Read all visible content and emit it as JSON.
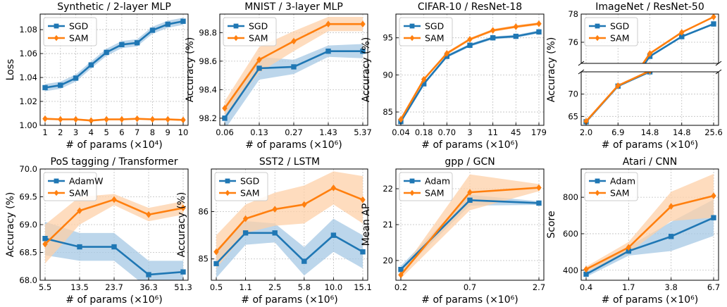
{
  "colors": {
    "sgd": "#1f77b4",
    "sam": "#ff7f0e",
    "sgd_band": "#a6c8e4",
    "sam_band": "#fdd0a8",
    "grid": "#bfbfbf"
  },
  "chart_data": [
    {
      "type": "line",
      "title": "Synthetic / 2-layer MLP",
      "xlabel": "# of params (×10⁴)",
      "ylabel": "Loss",
      "categories": [
        "1",
        "2",
        "3",
        "4",
        "5",
        "6",
        "7",
        "8",
        "9",
        "10"
      ],
      "ylim": [
        1.0,
        1.093
      ],
      "yticks": [
        1.0,
        1.02,
        1.04,
        1.06,
        1.08
      ],
      "ytick_labels": [
        "1.00",
        "1.02",
        "1.04",
        "1.06",
        "1.08"
      ],
      "legend": "upper-left",
      "grid": true,
      "series": [
        {
          "name": "SGD",
          "color": "sgd",
          "marker": "square",
          "values": [
            1.0315,
            1.0335,
            1.0395,
            1.0505,
            1.061,
            1.0675,
            1.069,
            1.0795,
            1.0845,
            1.087
          ],
          "band": [
            0.003,
            0.003,
            0.003,
            0.003,
            0.003,
            0.003,
            0.003,
            0.003,
            0.003,
            0.003
          ]
        },
        {
          "name": "SAM",
          "color": "sam",
          "marker": "diamond",
          "values": [
            1.0055,
            1.005,
            1.005,
            1.004,
            1.005,
            1.005,
            1.0055,
            1.005,
            1.005,
            1.0045
          ],
          "band": [
            0.0008,
            0.0008,
            0.0008,
            0.0008,
            0.0008,
            0.0008,
            0.0008,
            0.0008,
            0.0008,
            0.0008
          ]
        }
      ]
    },
    {
      "type": "line",
      "title": "MNIST / 3-layer MLP",
      "xlabel": "# of params (×10⁶)",
      "ylabel": "Accuracy (%)",
      "categories": [
        "0.06",
        "0.13",
        "0.27",
        "1.43",
        "5.37"
      ],
      "ylim": [
        98.15,
        98.93
      ],
      "yticks": [
        98.2,
        98.4,
        98.6,
        98.8
      ],
      "ytick_labels": [
        "98.2",
        "98.4",
        "98.6",
        "98.8"
      ],
      "legend": "upper-left",
      "grid": true,
      "series": [
        {
          "name": "SGD",
          "color": "sgd",
          "marker": "square",
          "values": [
            98.2,
            98.55,
            98.56,
            98.67,
            98.67
          ],
          "band": [
            0.08,
            0.08,
            0.05,
            0.04,
            0.05
          ]
        },
        {
          "name": "SAM",
          "color": "sam",
          "marker": "diamond",
          "values": [
            98.27,
            98.61,
            98.74,
            98.86,
            98.86
          ],
          "band": [
            0.05,
            0.09,
            0.07,
            0.05,
            0.05
          ]
        }
      ]
    },
    {
      "type": "line",
      "title": "CIFAR-10 / ResNet-18",
      "xlabel": "# of params (×10⁶)",
      "ylabel": "Accuracy (%)",
      "categories": [
        "0.04",
        "0.18",
        "0.70",
        "3",
        "11",
        "45",
        "179"
      ],
      "ylim": [
        83.2,
        98.2
      ],
      "yticks": [
        85,
        90,
        95
      ],
      "ytick_labels": [
        "85",
        "90",
        "95"
      ],
      "legend": "upper-left",
      "grid": true,
      "series": [
        {
          "name": "SGD",
          "color": "sgd",
          "marker": "square",
          "values": [
            83.7,
            88.8,
            92.5,
            94.0,
            95.0,
            95.2,
            95.8
          ],
          "band": [
            0.2,
            0.2,
            0.2,
            0.2,
            0.2,
            0.2,
            0.2
          ]
        },
        {
          "name": "SAM",
          "color": "sam",
          "marker": "diamond",
          "values": [
            84.0,
            89.4,
            92.9,
            94.8,
            96.0,
            96.5,
            96.9
          ],
          "band": [
            0.2,
            0.2,
            0.2,
            0.2,
            0.2,
            0.2,
            0.2
          ]
        }
      ]
    },
    {
      "type": "line",
      "title": "ImageNet / ResNet-50",
      "xlabel": "# of params (×10⁶)",
      "ylabel": "Accuracy (%)",
      "categories": [
        "2.0",
        "6.9",
        "14.8",
        "14.8",
        "25.6"
      ],
      "broken_axis": true,
      "upper_ylim": [
        74.5,
        78.0
      ],
      "upper_yticks": [
        76,
        78
      ],
      "upper_ytick_labels": [
        "76",
        "78"
      ],
      "lower_ylim": [
        63.0,
        75.0
      ],
      "lower_yticks": [
        65,
        70
      ],
      "lower_ytick_labels": [
        "65",
        "70"
      ],
      "legend": "upper-left",
      "grid": true,
      "series": [
        {
          "name": "SGD",
          "color": "sgd",
          "marker": "square",
          "values": [
            63.8,
            71.8,
            75.0,
            76.4,
            77.3
          ]
        },
        {
          "name": "SAM",
          "color": "sam",
          "marker": "diamond",
          "values": [
            63.9,
            71.9,
            75.2,
            76.7,
            77.8
          ]
        }
      ]
    },
    {
      "type": "line",
      "title": "PoS tagging / Transformer",
      "xlabel": "# of params (×10⁶)",
      "ylabel": "Accuracy (%)",
      "categories": [
        "5.5",
        "13.5",
        "23.7",
        "36.3",
        "51.3"
      ],
      "ylim": [
        68.0,
        70.0
      ],
      "yticks": [
        68.0,
        68.5,
        69.0,
        69.5,
        70.0
      ],
      "ytick_labels": [
        "68.0",
        "68.5",
        "69.0",
        "69.5",
        "70.0"
      ],
      "legend": "upper-left",
      "grid": true,
      "series": [
        {
          "name": "AdamW",
          "color": "sgd",
          "marker": "square",
          "values": [
            68.75,
            68.6,
            68.6,
            68.1,
            68.15
          ],
          "band": [
            0.3,
            0.25,
            0.25,
            0.25,
            0.2
          ]
        },
        {
          "name": "SAM",
          "color": "sam",
          "marker": "diamond",
          "values": [
            68.65,
            69.25,
            69.45,
            69.18,
            69.3
          ],
          "band": [
            0.35,
            0.25,
            0.1,
            0.12,
            0.12
          ]
        }
      ]
    },
    {
      "type": "line",
      "title": "SST2 / LSTM",
      "xlabel": "# of params (×10⁶)",
      "ylabel": "Accuracy (%)",
      "categories": [
        "0.5",
        "1.1",
        "2.5",
        "5.8",
        "10.0",
        "15.1"
      ],
      "ylim": [
        84.55,
        86.9
      ],
      "yticks": [
        85,
        86
      ],
      "ytick_labels": [
        "85",
        "86"
      ],
      "legend": "upper-left",
      "grid": true,
      "series": [
        {
          "name": "SGD",
          "color": "sgd",
          "marker": "square",
          "values": [
            84.9,
            85.55,
            85.55,
            84.95,
            85.5,
            85.15
          ],
          "band": [
            0.3,
            0.25,
            0.2,
            0.3,
            0.35,
            0.35
          ]
        },
        {
          "name": "SAM",
          "color": "sam",
          "marker": "diamond",
          "values": [
            85.15,
            85.85,
            86.05,
            86.15,
            86.5,
            86.25
          ],
          "band": [
            0.35,
            0.3,
            0.35,
            0.4,
            0.35,
            0.5
          ]
        }
      ]
    },
    {
      "type": "line",
      "title": "gpp / GCN",
      "xlabel": "# of params (×10⁶)",
      "ylabel": "Mean AP",
      "categories": [
        "0.2",
        "0.7",
        "2.7"
      ],
      "ylim": [
        19.45,
        22.55
      ],
      "yticks": [
        20,
        21,
        22
      ],
      "ytick_labels": [
        "20",
        "21",
        "22"
      ],
      "legend": "upper-left",
      "grid": true,
      "series": [
        {
          "name": "Adam",
          "color": "sgd",
          "marker": "square",
          "values": [
            19.75,
            21.68,
            21.6
          ],
          "band": [
            0.1,
            0.15,
            0.05
          ]
        },
        {
          "name": "SAM",
          "color": "sam",
          "marker": "diamond",
          "values": [
            19.6,
            21.9,
            22.03
          ],
          "band": [
            0.1,
            0.5,
            0.1
          ]
        }
      ]
    },
    {
      "type": "line",
      "title": "Atari / CNN",
      "xlabel": "# of params (×10⁶)",
      "ylabel": "Score",
      "categories": [
        "0.4",
        "1.7",
        "3.8",
        "6.7"
      ],
      "ylim": [
        345,
        955
      ],
      "yticks": [
        400,
        600,
        800
      ],
      "ytick_labels": [
        "400",
        "600",
        "800"
      ],
      "legend": "upper-left",
      "grid": true,
      "series": [
        {
          "name": "Adam",
          "color": "sgd",
          "marker": "square",
          "values": [
            378,
            505,
            585,
            688
          ],
          "band": [
            15,
            25,
            80,
            100
          ]
        },
        {
          "name": "SAM",
          "color": "sam",
          "marker": "diamond",
          "values": [
            405,
            525,
            750,
            808
          ],
          "band": [
            15,
            30,
            80,
            120
          ]
        }
      ]
    }
  ]
}
